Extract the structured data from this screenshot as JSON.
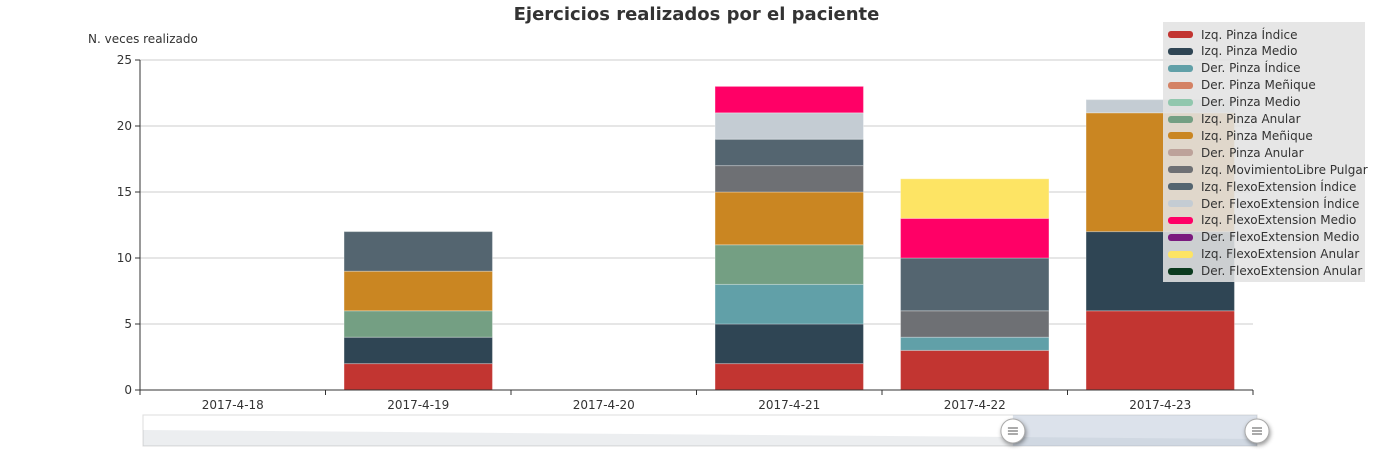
{
  "chart_data": {
    "type": "bar",
    "stacked": true,
    "title": "Ejercicios realizados por el paciente",
    "ylabel": "N. veces realizado",
    "xlabel": "",
    "ylim": [
      0,
      25
    ],
    "yticks": [
      0,
      5,
      10,
      15,
      20,
      25
    ],
    "grid": true,
    "legend_position": "top-right",
    "categories": [
      "2017-4-18",
      "2017-4-19",
      "2017-4-20",
      "2017-4-21",
      "2017-4-22",
      "2017-4-23"
    ],
    "series": [
      {
        "name": "Izq. Pinza Índice",
        "color": "#c23531",
        "values": [
          0,
          2,
          0,
          2,
          3,
          6
        ]
      },
      {
        "name": "Izq. Pinza Medio",
        "color": "#2f4554",
        "values": [
          0,
          2,
          0,
          3,
          0,
          6
        ]
      },
      {
        "name": "Der. Pinza Índice",
        "color": "#61a0a8",
        "values": [
          0,
          0,
          0,
          3,
          1,
          0
        ]
      },
      {
        "name": "Der. Pinza Meñique",
        "color": "#d48265",
        "values": [
          0,
          0,
          0,
          0,
          0,
          0
        ]
      },
      {
        "name": "Der. Pinza Medio",
        "color": "#91c7ae",
        "values": [
          0,
          0,
          0,
          0,
          0,
          0
        ]
      },
      {
        "name": "Izq. Pinza Anular",
        "color": "#749f83",
        "values": [
          0,
          2,
          0,
          3,
          0,
          0
        ]
      },
      {
        "name": "Izq. Pinza Meñique",
        "color": "#ca8622",
        "values": [
          0,
          3,
          0,
          4,
          0,
          9
        ]
      },
      {
        "name": "Der. Pinza Anular",
        "color": "#bda29a",
        "values": [
          0,
          0,
          0,
          0,
          0,
          0
        ]
      },
      {
        "name": "Izq. MovimientoLibre Pulgar",
        "color": "#6e7074",
        "values": [
          0,
          0,
          0,
          2,
          2,
          0
        ]
      },
      {
        "name": "Izq. FlexoExtension Índice",
        "color": "#546570",
        "values": [
          0,
          3,
          0,
          2,
          4,
          0
        ]
      },
      {
        "name": "Der. FlexoExtension Índice",
        "color": "#c4ccd3",
        "values": [
          0,
          0,
          0,
          2,
          0,
          1
        ]
      },
      {
        "name": "Izq. FlexoExtension Medio",
        "color": "#ff0066",
        "values": [
          0,
          0,
          0,
          2,
          3,
          0
        ]
      },
      {
        "name": "Der. FlexoExtension Medio",
        "color": "#7a1a7e",
        "values": [
          0,
          0,
          0,
          0,
          0,
          0
        ]
      },
      {
        "name": "Izq. FlexoExtension Anular",
        "color": "#fde464",
        "values": [
          0,
          0,
          0,
          0,
          3,
          0
        ]
      },
      {
        "name": "Der. FlexoExtension Anular",
        "color": "#0b3a1e",
        "values": [
          0,
          0,
          0,
          0,
          0,
          0
        ]
      }
    ]
  },
  "data_zoom": {
    "start_percent": 85,
    "end_percent": 100
  }
}
